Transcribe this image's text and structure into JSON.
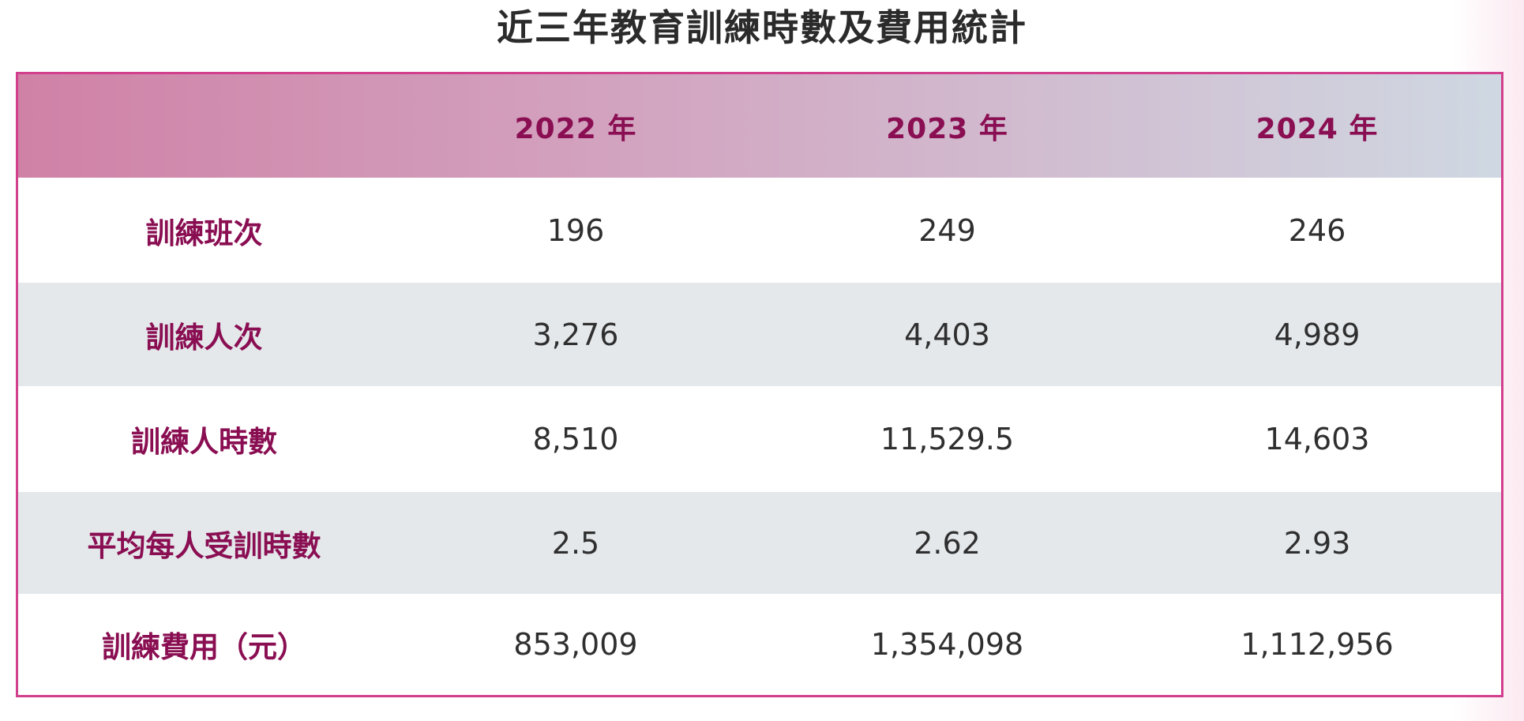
{
  "title": "近三年教育訓練時數及費用統計",
  "table": {
    "columns": [
      "",
      "2022 年",
      "2023 年",
      "2024 年"
    ],
    "rows": [
      {
        "label": "訓練班次",
        "values": [
          "196",
          "249",
          "246"
        ]
      },
      {
        "label": "訓練人次",
        "values": [
          "3,276",
          "4,403",
          "4,989"
        ]
      },
      {
        "label": "訓練人時數",
        "values": [
          "8,510",
          "11,529.5",
          "14,603"
        ]
      },
      {
        "label": "平均每人受訓時數",
        "values": [
          "2.5",
          "2.62",
          "2.93"
        ]
      },
      {
        "label": "訓練費用（元）",
        "values": [
          "853,009",
          "1,354,098",
          "1,112,956"
        ]
      }
    ]
  },
  "colors": {
    "border": "#d23f8d",
    "label_text": "#8a0e52",
    "header_gradient_start": "#d081a6",
    "header_gradient_end": "#cfd8e2",
    "stripe": "#e4e8eb"
  }
}
